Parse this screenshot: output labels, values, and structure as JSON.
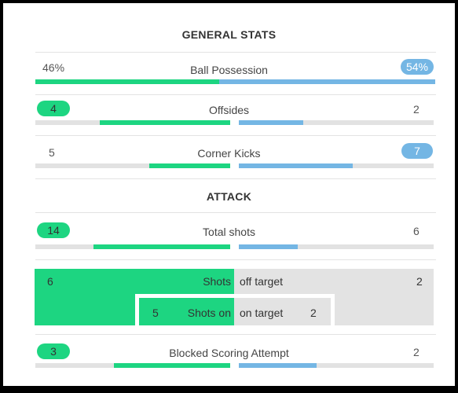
{
  "sections": {
    "general": "GENERAL STATS",
    "attack": "ATTACK"
  },
  "stats": {
    "possession": {
      "label": "Ball Possession",
      "home": "46%",
      "away": "54%",
      "home_share": 0.46,
      "away_share": 0.54
    },
    "offsides": {
      "label": "Offsides",
      "home": "4",
      "away": "2",
      "home_share": 0.67,
      "away_share": 0.33
    },
    "corners": {
      "label": "Corner Kicks",
      "home": "5",
      "away": "7",
      "home_share": 0.42,
      "away_share": 0.58
    },
    "total_shots": {
      "label": "Total shots",
      "home": "14",
      "away": "6",
      "home_share": 0.7,
      "away_share": 0.3
    },
    "blocked": {
      "label": "Blocked Scoring Attempt",
      "home": "3",
      "away": "2",
      "home_share": 0.6,
      "away_share": 0.4
    }
  },
  "shots_breakdown": {
    "off_target": {
      "home": "6",
      "label_left": "Shots",
      "label_right": "off target",
      "away": "2"
    },
    "on_target": {
      "home": "5",
      "label_left": "Shots on",
      "label_right": "on target",
      "away": "2"
    }
  },
  "colors": {
    "home": "#1dd581",
    "away": "#74b6e4",
    "track": "#e2e2e2"
  }
}
